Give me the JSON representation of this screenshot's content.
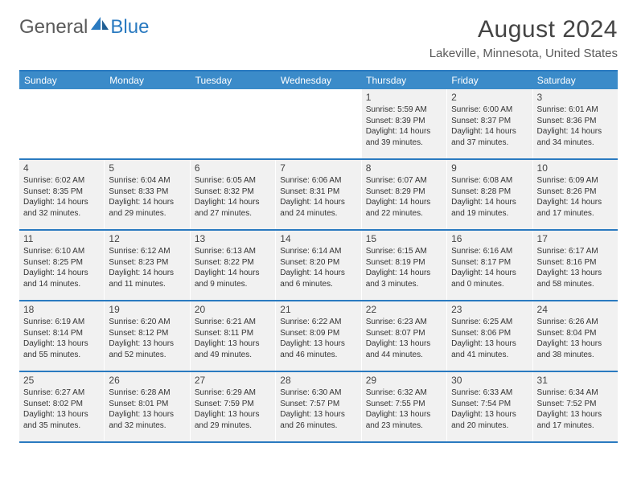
{
  "logo": {
    "text1": "General",
    "text2": "Blue"
  },
  "title": "August 2024",
  "location": "Lakeville, Minnesota, United States",
  "day_headers": [
    "Sunday",
    "Monday",
    "Tuesday",
    "Wednesday",
    "Thursday",
    "Friday",
    "Saturday"
  ],
  "colors": {
    "header_bg": "#3b8bc9",
    "border": "#2a7ac0",
    "cell_bg": "#f1f1f1",
    "text": "#333333",
    "title_text": "#444444"
  },
  "weeks": [
    [
      null,
      null,
      null,
      null,
      {
        "n": "1",
        "sr": "5:59 AM",
        "ss": "8:39 PM",
        "dl": "14 hours and 39 minutes."
      },
      {
        "n": "2",
        "sr": "6:00 AM",
        "ss": "8:37 PM",
        "dl": "14 hours and 37 minutes."
      },
      {
        "n": "3",
        "sr": "6:01 AM",
        "ss": "8:36 PM",
        "dl": "14 hours and 34 minutes."
      }
    ],
    [
      {
        "n": "4",
        "sr": "6:02 AM",
        "ss": "8:35 PM",
        "dl": "14 hours and 32 minutes."
      },
      {
        "n": "5",
        "sr": "6:04 AM",
        "ss": "8:33 PM",
        "dl": "14 hours and 29 minutes."
      },
      {
        "n": "6",
        "sr": "6:05 AM",
        "ss": "8:32 PM",
        "dl": "14 hours and 27 minutes."
      },
      {
        "n": "7",
        "sr": "6:06 AM",
        "ss": "8:31 PM",
        "dl": "14 hours and 24 minutes."
      },
      {
        "n": "8",
        "sr": "6:07 AM",
        "ss": "8:29 PM",
        "dl": "14 hours and 22 minutes."
      },
      {
        "n": "9",
        "sr": "6:08 AM",
        "ss": "8:28 PM",
        "dl": "14 hours and 19 minutes."
      },
      {
        "n": "10",
        "sr": "6:09 AM",
        "ss": "8:26 PM",
        "dl": "14 hours and 17 minutes."
      }
    ],
    [
      {
        "n": "11",
        "sr": "6:10 AM",
        "ss": "8:25 PM",
        "dl": "14 hours and 14 minutes."
      },
      {
        "n": "12",
        "sr": "6:12 AM",
        "ss": "8:23 PM",
        "dl": "14 hours and 11 minutes."
      },
      {
        "n": "13",
        "sr": "6:13 AM",
        "ss": "8:22 PM",
        "dl": "14 hours and 9 minutes."
      },
      {
        "n": "14",
        "sr": "6:14 AM",
        "ss": "8:20 PM",
        "dl": "14 hours and 6 minutes."
      },
      {
        "n": "15",
        "sr": "6:15 AM",
        "ss": "8:19 PM",
        "dl": "14 hours and 3 minutes."
      },
      {
        "n": "16",
        "sr": "6:16 AM",
        "ss": "8:17 PM",
        "dl": "14 hours and 0 minutes."
      },
      {
        "n": "17",
        "sr": "6:17 AM",
        "ss": "8:16 PM",
        "dl": "13 hours and 58 minutes."
      }
    ],
    [
      {
        "n": "18",
        "sr": "6:19 AM",
        "ss": "8:14 PM",
        "dl": "13 hours and 55 minutes."
      },
      {
        "n": "19",
        "sr": "6:20 AM",
        "ss": "8:12 PM",
        "dl": "13 hours and 52 minutes."
      },
      {
        "n": "20",
        "sr": "6:21 AM",
        "ss": "8:11 PM",
        "dl": "13 hours and 49 minutes."
      },
      {
        "n": "21",
        "sr": "6:22 AM",
        "ss": "8:09 PM",
        "dl": "13 hours and 46 minutes."
      },
      {
        "n": "22",
        "sr": "6:23 AM",
        "ss": "8:07 PM",
        "dl": "13 hours and 44 minutes."
      },
      {
        "n": "23",
        "sr": "6:25 AM",
        "ss": "8:06 PM",
        "dl": "13 hours and 41 minutes."
      },
      {
        "n": "24",
        "sr": "6:26 AM",
        "ss": "8:04 PM",
        "dl": "13 hours and 38 minutes."
      }
    ],
    [
      {
        "n": "25",
        "sr": "6:27 AM",
        "ss": "8:02 PM",
        "dl": "13 hours and 35 minutes."
      },
      {
        "n": "26",
        "sr": "6:28 AM",
        "ss": "8:01 PM",
        "dl": "13 hours and 32 minutes."
      },
      {
        "n": "27",
        "sr": "6:29 AM",
        "ss": "7:59 PM",
        "dl": "13 hours and 29 minutes."
      },
      {
        "n": "28",
        "sr": "6:30 AM",
        "ss": "7:57 PM",
        "dl": "13 hours and 26 minutes."
      },
      {
        "n": "29",
        "sr": "6:32 AM",
        "ss": "7:55 PM",
        "dl": "13 hours and 23 minutes."
      },
      {
        "n": "30",
        "sr": "6:33 AM",
        "ss": "7:54 PM",
        "dl": "13 hours and 20 minutes."
      },
      {
        "n": "31",
        "sr": "6:34 AM",
        "ss": "7:52 PM",
        "dl": "13 hours and 17 minutes."
      }
    ]
  ],
  "labels": {
    "sunrise": "Sunrise:",
    "sunset": "Sunset:",
    "daylight": "Daylight:"
  }
}
